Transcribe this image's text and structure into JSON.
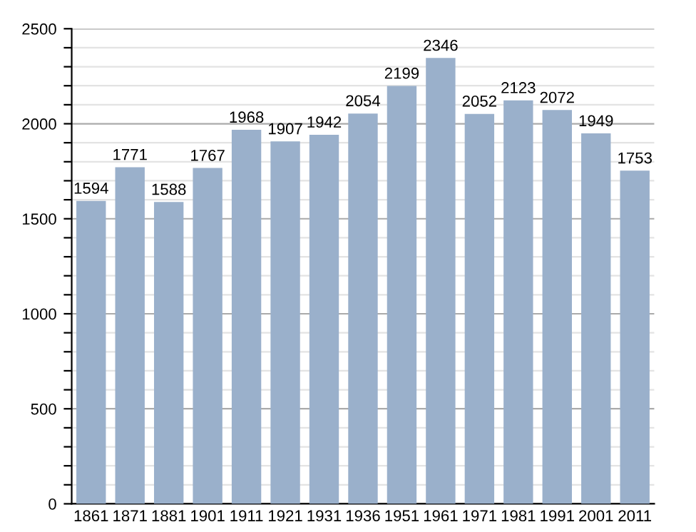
{
  "chart_data": {
    "type": "bar",
    "categories": [
      "1861",
      "1871",
      "1881",
      "1901",
      "1911",
      "1921",
      "1931",
      "1936",
      "1951",
      "1961",
      "1971",
      "1981",
      "1991",
      "2001",
      "2011"
    ],
    "values": [
      1594,
      1771,
      1588,
      1767,
      1968,
      1907,
      1942,
      2054,
      2199,
      2346,
      2052,
      2123,
      2072,
      1949,
      1753
    ],
    "color": "#9ab0cb",
    "data_labels": true,
    "grid": "y",
    "ylim": [
      0,
      2500
    ],
    "yticks": [
      0,
      {
        "value": 100,
        "label": null
      },
      {
        "value": 200,
        "label": null
      },
      {
        "value": 300,
        "label": null
      },
      {
        "value": 400,
        "label": null
      },
      500,
      {
        "value": 600,
        "label": null
      },
      {
        "value": 700,
        "label": null
      },
      {
        "value": 800,
        "label": null
      },
      {
        "value": 900,
        "label": null
      },
      1000,
      {
        "value": 1100,
        "label": null
      },
      {
        "value": 1200,
        "label": null
      },
      {
        "value": 1300,
        "label": null
      },
      {
        "value": 1400,
        "label": null
      },
      1500,
      {
        "value": 1600,
        "label": null
      },
      {
        "value": 1700,
        "label": null
      },
      {
        "value": 1800,
        "label": null
      },
      {
        "value": 1900,
        "label": null
      },
      2000,
      {
        "value": 2100,
        "label": null
      },
      {
        "value": 2200,
        "label": null
      },
      {
        "value": 2300,
        "label": null
      },
      {
        "value": 2400,
        "label": null
      },
      2500
    ]
  }
}
